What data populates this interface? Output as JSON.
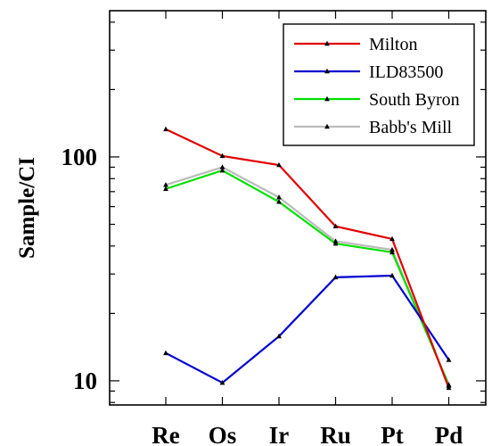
{
  "chart_data": {
    "type": "line",
    "title": "",
    "xlabel": "",
    "ylabel": "Sample/CI",
    "yscale": "log",
    "ylim": [
      7.8,
      450
    ],
    "categories": [
      "Re",
      "Os",
      "Ir",
      "Ru",
      "Pt",
      "Pd"
    ],
    "ytick_labels": [
      {
        "value": 10,
        "label": "10"
      },
      {
        "value": 100,
        "label": "100"
      }
    ],
    "legend_position": "top-right",
    "grid": false,
    "series": [
      {
        "name": "Milton",
        "color": "#e00000",
        "values": [
          133,
          101,
          92,
          49,
          43,
          9.3
        ]
      },
      {
        "name": "ILD83500",
        "color": "#0000d0",
        "values": [
          13.3,
          9.8,
          15.8,
          29,
          29.5,
          12.4
        ]
      },
      {
        "name": "South Byron",
        "color": "#00e000",
        "values": [
          72,
          87,
          63,
          41,
          37.5,
          9.6
        ]
      },
      {
        "name": "Babb's Mill",
        "color": "#bbbbbb",
        "values": [
          75,
          90,
          66,
          42,
          38.5,
          9.5
        ]
      }
    ]
  }
}
